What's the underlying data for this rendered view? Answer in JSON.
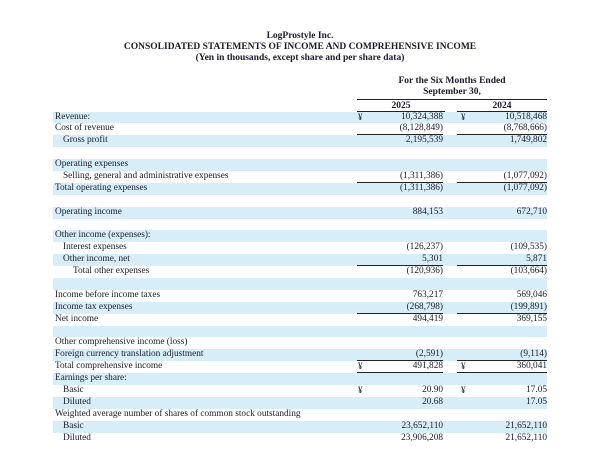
{
  "header": {
    "company": "LogProstyle Inc.",
    "statement": "CONSOLIDATED STATEMENTS OF INCOME AND COMPREHENSIVE INCOME",
    "units": "(Yen in thousands, except share and per share data)",
    "period_line1": "For the Six Months Ended",
    "period_line2": "September 30,",
    "years": [
      "2025",
      "2024"
    ]
  },
  "colors": {
    "row_shade": "#d7eef9"
  },
  "rows": [
    {
      "label": "Revenue:",
      "currency": "¥",
      "v2025": "10,324,388",
      "v2024": "10,518,468"
    },
    {
      "label": "Cost of revenue",
      "v2025": "(8,128,849)",
      "v2024": "(8,768,666)"
    },
    {
      "label": "Gross profit",
      "v2025": "2,195,539",
      "v2024": "1,749,802"
    },
    {
      "label": ""
    },
    {
      "label": "Operating expenses"
    },
    {
      "label": "Selling, general and administrative expenses",
      "v2025": "(1,311,386)",
      "v2024": "(1,077,092)"
    },
    {
      "label": "Total operating expenses",
      "v2025": "(1,311,386)",
      "v2024": "(1,077,092)"
    },
    {
      "label": ""
    },
    {
      "label": "Operating income",
      "v2025": "884,153",
      "v2024": "672,710"
    },
    {
      "label": ""
    },
    {
      "label": "Other income (expenses):"
    },
    {
      "label": "Interest expenses",
      "v2025": "(126,237)",
      "v2024": "(109,535)"
    },
    {
      "label": "Other income, net",
      "v2025": "5,301",
      "v2024": "5,871"
    },
    {
      "label": "Total other expenses",
      "v2025": "(120,936)",
      "v2024": "(103,664)"
    },
    {
      "label": ""
    },
    {
      "label": "Income before income taxes",
      "v2025": "763,217",
      "v2024": "569,046"
    },
    {
      "label": "Income tax expenses",
      "v2025": "(268,798)",
      "v2024": "(199,891)"
    },
    {
      "label": "Net income",
      "v2025": "494,419",
      "v2024": "369,155"
    },
    {
      "label": ""
    },
    {
      "label": "Other comprehensive income (loss)"
    },
    {
      "label": "Foreign currency translation adjustment",
      "v2025": "(2,591)",
      "v2024": "(9,114)"
    },
    {
      "label": "Total comprehensive income",
      "currency": "¥",
      "v2025": "491,828",
      "v2024": "360,041"
    },
    {
      "label": "Earnings per share:"
    },
    {
      "label": "Basic",
      "currency": "¥",
      "v2025": "20.90",
      "v2024": "17.05"
    },
    {
      "label": "Diluted",
      "v2025": "20.68",
      "v2024": "17.05"
    },
    {
      "label": "Weighted average number of shares of common stock outstanding"
    },
    {
      "label": "Basic",
      "v2025": "23,652,110",
      "v2024": "21,652,110"
    },
    {
      "label": "Diluted",
      "v2025": "23,906,208",
      "v2024": "21,652,110"
    }
  ]
}
